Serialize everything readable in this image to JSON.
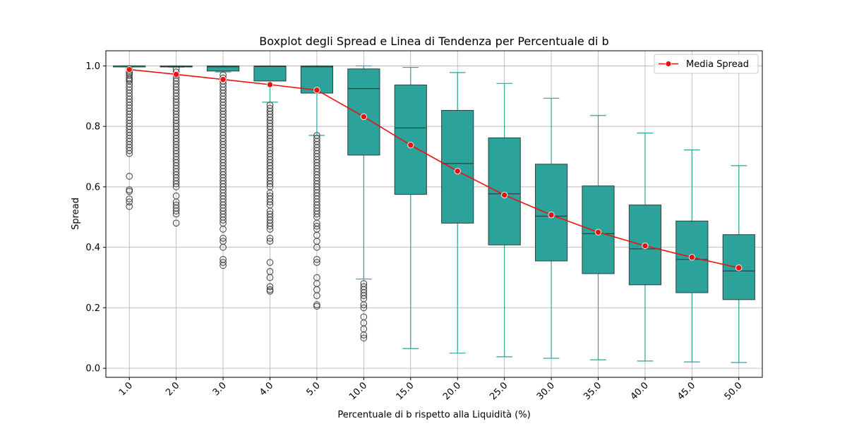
{
  "chart_data": {
    "type": "box",
    "title": "Boxplot degli Spread e Linea di Tendenza per Percentuale di b",
    "xlabel": "Percentuale di b rispetto alla Liquidità (%)",
    "ylabel": "Spread",
    "categories": [
      "1.0",
      "2.0",
      "3.0",
      "4.0",
      "5.0",
      "10.0",
      "15.0",
      "20.0",
      "25.0",
      "30.0",
      "35.0",
      "40.0",
      "45.0",
      "50.0"
    ],
    "ylim": [
      -0.03,
      1.05
    ],
    "yticks": [
      0.0,
      0.2,
      0.4,
      0.6,
      0.8,
      1.0
    ],
    "ytick_labels": [
      "0.0",
      "0.2",
      "0.4",
      "0.6",
      "0.8",
      "1.0"
    ],
    "grid": true,
    "legend": {
      "position": "top-right",
      "entries": [
        "Media Spread"
      ]
    },
    "colors": {
      "box_fill": "#2ca39a",
      "box_edge": "#2f3f3e",
      "whisker": "#2ca39a",
      "mean_line": "#e8120f",
      "grid": "#b0b0b0"
    },
    "boxes": [
      {
        "category": "1.0",
        "whislo": 0.997,
        "q1": 0.998,
        "med": 1.0,
        "q3": 1.0,
        "whishi": 1.0,
        "fliers": [
          0.99,
          0.985,
          0.98,
          0.975,
          0.97,
          0.96,
          0.955,
          0.95,
          0.94,
          0.93,
          0.92,
          0.91,
          0.9,
          0.89,
          0.88,
          0.87,
          0.86,
          0.85,
          0.84,
          0.83,
          0.82,
          0.81,
          0.8,
          0.79,
          0.78,
          0.77,
          0.76,
          0.75,
          0.74,
          0.73,
          0.72,
          0.71,
          0.635,
          0.59,
          0.585,
          0.56,
          0.55,
          0.535
        ]
      },
      {
        "category": "2.0",
        "whislo": 0.996,
        "q1": 0.997,
        "med": 0.999,
        "q3": 1.0,
        "whishi": 1.0,
        "fliers": [
          0.99,
          0.98,
          0.97,
          0.96,
          0.95,
          0.94,
          0.93,
          0.92,
          0.91,
          0.9,
          0.89,
          0.88,
          0.87,
          0.86,
          0.85,
          0.84,
          0.83,
          0.82,
          0.81,
          0.8,
          0.79,
          0.78,
          0.77,
          0.76,
          0.75,
          0.74,
          0.73,
          0.72,
          0.71,
          0.7,
          0.69,
          0.68,
          0.67,
          0.66,
          0.65,
          0.64,
          0.63,
          0.62,
          0.61,
          0.6,
          0.57,
          0.55,
          0.54,
          0.53,
          0.52,
          0.51,
          0.48
        ]
      },
      {
        "category": "3.0",
        "whislo": 0.98,
        "q1": 0.983,
        "med": 0.997,
        "q3": 1.0,
        "whishi": 1.0,
        "fliers": [
          0.97,
          0.96,
          0.95,
          0.94,
          0.93,
          0.92,
          0.91,
          0.9,
          0.89,
          0.88,
          0.87,
          0.86,
          0.85,
          0.84,
          0.83,
          0.82,
          0.81,
          0.8,
          0.79,
          0.78,
          0.77,
          0.76,
          0.75,
          0.74,
          0.73,
          0.72,
          0.71,
          0.7,
          0.69,
          0.68,
          0.67,
          0.66,
          0.65,
          0.64,
          0.63,
          0.62,
          0.61,
          0.6,
          0.59,
          0.58,
          0.57,
          0.56,
          0.55,
          0.54,
          0.53,
          0.52,
          0.51,
          0.5,
          0.49,
          0.48,
          0.46,
          0.43,
          0.42,
          0.4,
          0.36,
          0.35,
          0.34
        ]
      },
      {
        "category": "4.0",
        "whislo": 0.88,
        "q1": 0.95,
        "med": 0.998,
        "q3": 1.0,
        "whishi": 1.0,
        "fliers": [
          0.87,
          0.86,
          0.85,
          0.84,
          0.83,
          0.82,
          0.81,
          0.8,
          0.79,
          0.78,
          0.77,
          0.76,
          0.75,
          0.74,
          0.73,
          0.72,
          0.71,
          0.7,
          0.69,
          0.68,
          0.67,
          0.66,
          0.65,
          0.64,
          0.63,
          0.62,
          0.61,
          0.6,
          0.58,
          0.57,
          0.56,
          0.55,
          0.54,
          0.52,
          0.51,
          0.5,
          0.49,
          0.48,
          0.47,
          0.46,
          0.43,
          0.42,
          0.35,
          0.32,
          0.3,
          0.27,
          0.26,
          0.255
        ]
      },
      {
        "category": "5.0",
        "whislo": 0.77,
        "q1": 0.91,
        "med": 0.997,
        "q3": 1.0,
        "whishi": 1.0,
        "fliers": [
          0.77,
          0.76,
          0.75,
          0.74,
          0.73,
          0.72,
          0.71,
          0.7,
          0.69,
          0.68,
          0.67,
          0.66,
          0.65,
          0.64,
          0.63,
          0.62,
          0.61,
          0.6,
          0.59,
          0.58,
          0.57,
          0.56,
          0.55,
          0.54,
          0.53,
          0.52,
          0.51,
          0.5,
          0.48,
          0.47,
          0.46,
          0.44,
          0.42,
          0.4,
          0.36,
          0.35,
          0.3,
          0.28,
          0.26,
          0.24,
          0.21,
          0.205
        ]
      },
      {
        "category": "10.0",
        "whislo": 0.295,
        "q1": 0.705,
        "med": 0.925,
        "q3": 0.99,
        "whishi": 1.0,
        "fliers": [
          0.28,
          0.27,
          0.26,
          0.25,
          0.24,
          0.23,
          0.21,
          0.2,
          0.17,
          0.15,
          0.13,
          0.11,
          0.1
        ]
      },
      {
        "category": "15.0",
        "whislo": 0.065,
        "q1": 0.575,
        "med": 0.795,
        "q3": 0.937,
        "whishi": 0.995,
        "fliers": []
      },
      {
        "category": "20.0",
        "whislo": 0.05,
        "q1": 0.48,
        "med": 0.677,
        "q3": 0.853,
        "whishi": 0.978,
        "fliers": []
      },
      {
        "category": "25.0",
        "whislo": 0.038,
        "q1": 0.408,
        "med": 0.577,
        "q3": 0.762,
        "whishi": 0.942,
        "fliers": []
      },
      {
        "category": "30.0",
        "whislo": 0.033,
        "q1": 0.355,
        "med": 0.503,
        "q3": 0.675,
        "whishi": 0.893,
        "fliers": []
      },
      {
        "category": "35.0",
        "whislo": 0.028,
        "q1": 0.313,
        "med": 0.445,
        "q3": 0.603,
        "whishi": 0.836,
        "fliers": []
      },
      {
        "category": "40.0",
        "whislo": 0.024,
        "q1": 0.276,
        "med": 0.395,
        "q3": 0.54,
        "whishi": 0.778,
        "fliers": []
      },
      {
        "category": "45.0",
        "whislo": 0.021,
        "q1": 0.25,
        "med": 0.36,
        "q3": 0.487,
        "whishi": 0.722,
        "fliers": []
      },
      {
        "category": "50.0",
        "whislo": 0.019,
        "q1": 0.227,
        "med": 0.322,
        "q3": 0.442,
        "whishi": 0.67,
        "fliers": []
      }
    ],
    "series": [
      {
        "name": "Media Spread",
        "type": "line",
        "values": [
          0.988,
          0.972,
          0.955,
          0.938,
          0.92,
          0.832,
          0.738,
          0.652,
          0.573,
          0.507,
          0.45,
          0.405,
          0.367,
          0.332
        ]
      }
    ]
  }
}
